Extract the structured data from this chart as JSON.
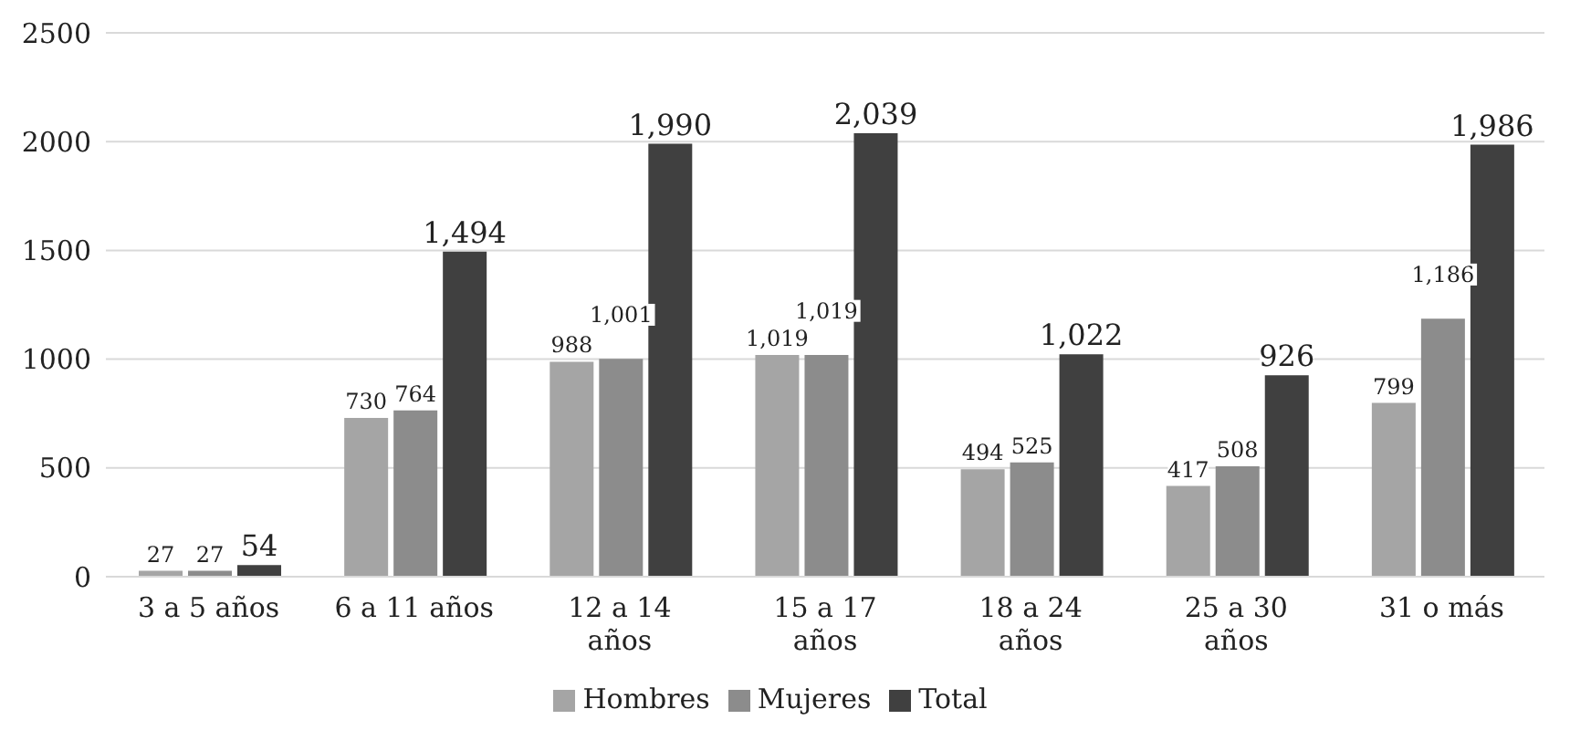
{
  "chart_data": {
    "type": "bar",
    "categories": [
      "3 a 5 años",
      "6 a 11 años",
      "12 a 14 años",
      "15 a 17 años",
      "18 a 24 años",
      "25 a 30 años",
      "31 o más"
    ],
    "series": [
      {
        "name": "Hombres",
        "color": "#a5a5a5",
        "values": [
          27,
          730,
          988,
          1019,
          494,
          417,
          799
        ],
        "value_labels": [
          "27",
          "730",
          "988",
          "1,019",
          "494",
          "417",
          "799"
        ]
      },
      {
        "name": "Mujeres",
        "color": "#8c8c8c",
        "values": [
          27,
          764,
          1001,
          1019,
          525,
          508,
          1186
        ],
        "value_labels": [
          "27",
          "764",
          "1,001",
          "1,019",
          "525",
          "508",
          "1,186"
        ]
      },
      {
        "name": "Total",
        "color": "#404040",
        "values": [
          54,
          1494,
          1990,
          2039,
          1022,
          926,
          1986
        ],
        "value_labels": [
          "54",
          "1,494",
          "1,990",
          "2,039",
          "1,022",
          "926",
          "1,986"
        ]
      }
    ],
    "ylim": [
      0,
      2500
    ],
    "yticks": [
      0,
      500,
      1000,
      1500,
      2000,
      2500
    ],
    "grid": "y",
    "legend": "bottom"
  }
}
